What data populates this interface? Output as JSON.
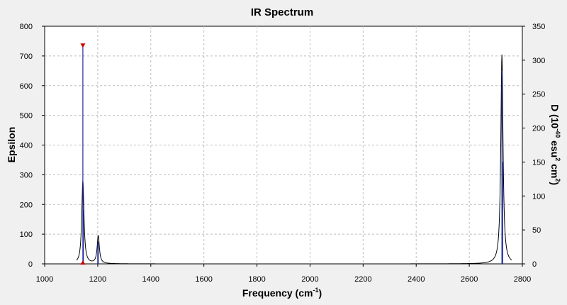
{
  "chart_data": {
    "type": "line",
    "title": "IR Spectrum",
    "xlabel_main": "Frequency (cm",
    "xlabel_sup": "-1",
    "xlabel_tail": ")",
    "ylabel_left": "Epsilon",
    "ylabel_right": {
      "p1": "D (10",
      "sup1": "-40",
      "p2": " esu",
      "sup2": "2",
      "p3": " cm",
      "sup3": "2",
      "p4": ")"
    },
    "xlim": [
      1000,
      2800
    ],
    "ylim_left": [
      0,
      800
    ],
    "ylim_right": [
      0,
      350
    ],
    "grid": true,
    "x_ticks": [
      1000,
      1200,
      1400,
      1600,
      1800,
      2000,
      2200,
      2400,
      2600,
      2800
    ],
    "y_ticks_left": [
      0,
      100,
      200,
      300,
      400,
      500,
      600,
      700,
      800
    ],
    "y_ticks_right": [
      0,
      50,
      100,
      150,
      200,
      250,
      300,
      350
    ],
    "peaks": [
      {
        "frequency": 1144,
        "intensity": 322,
        "epsilon_peak": 280,
        "selected": true
      },
      {
        "frequency": 1146,
        "intensity": 80,
        "epsilon_peak": 0,
        "selected": false
      },
      {
        "frequency": 1202,
        "intensity": 33,
        "epsilon_peak": 94,
        "selected": false
      },
      {
        "frequency": 1200,
        "intensity": 30,
        "epsilon_peak": 0,
        "selected": false
      },
      {
        "frequency": 2723,
        "intensity": 284,
        "epsilon_peak": 705,
        "selected": false
      },
      {
        "frequency": 2726,
        "intensity": 150,
        "epsilon_peak": 0,
        "selected": false
      }
    ],
    "half_width": 5,
    "colors": {
      "spectrum": "#000000",
      "sticks": "#1f2aa0",
      "marker": "#cc0000",
      "grid": "#bdbdbd",
      "plot_bg": "#ffffff",
      "frame_bg": "#f0f0f0"
    }
  }
}
